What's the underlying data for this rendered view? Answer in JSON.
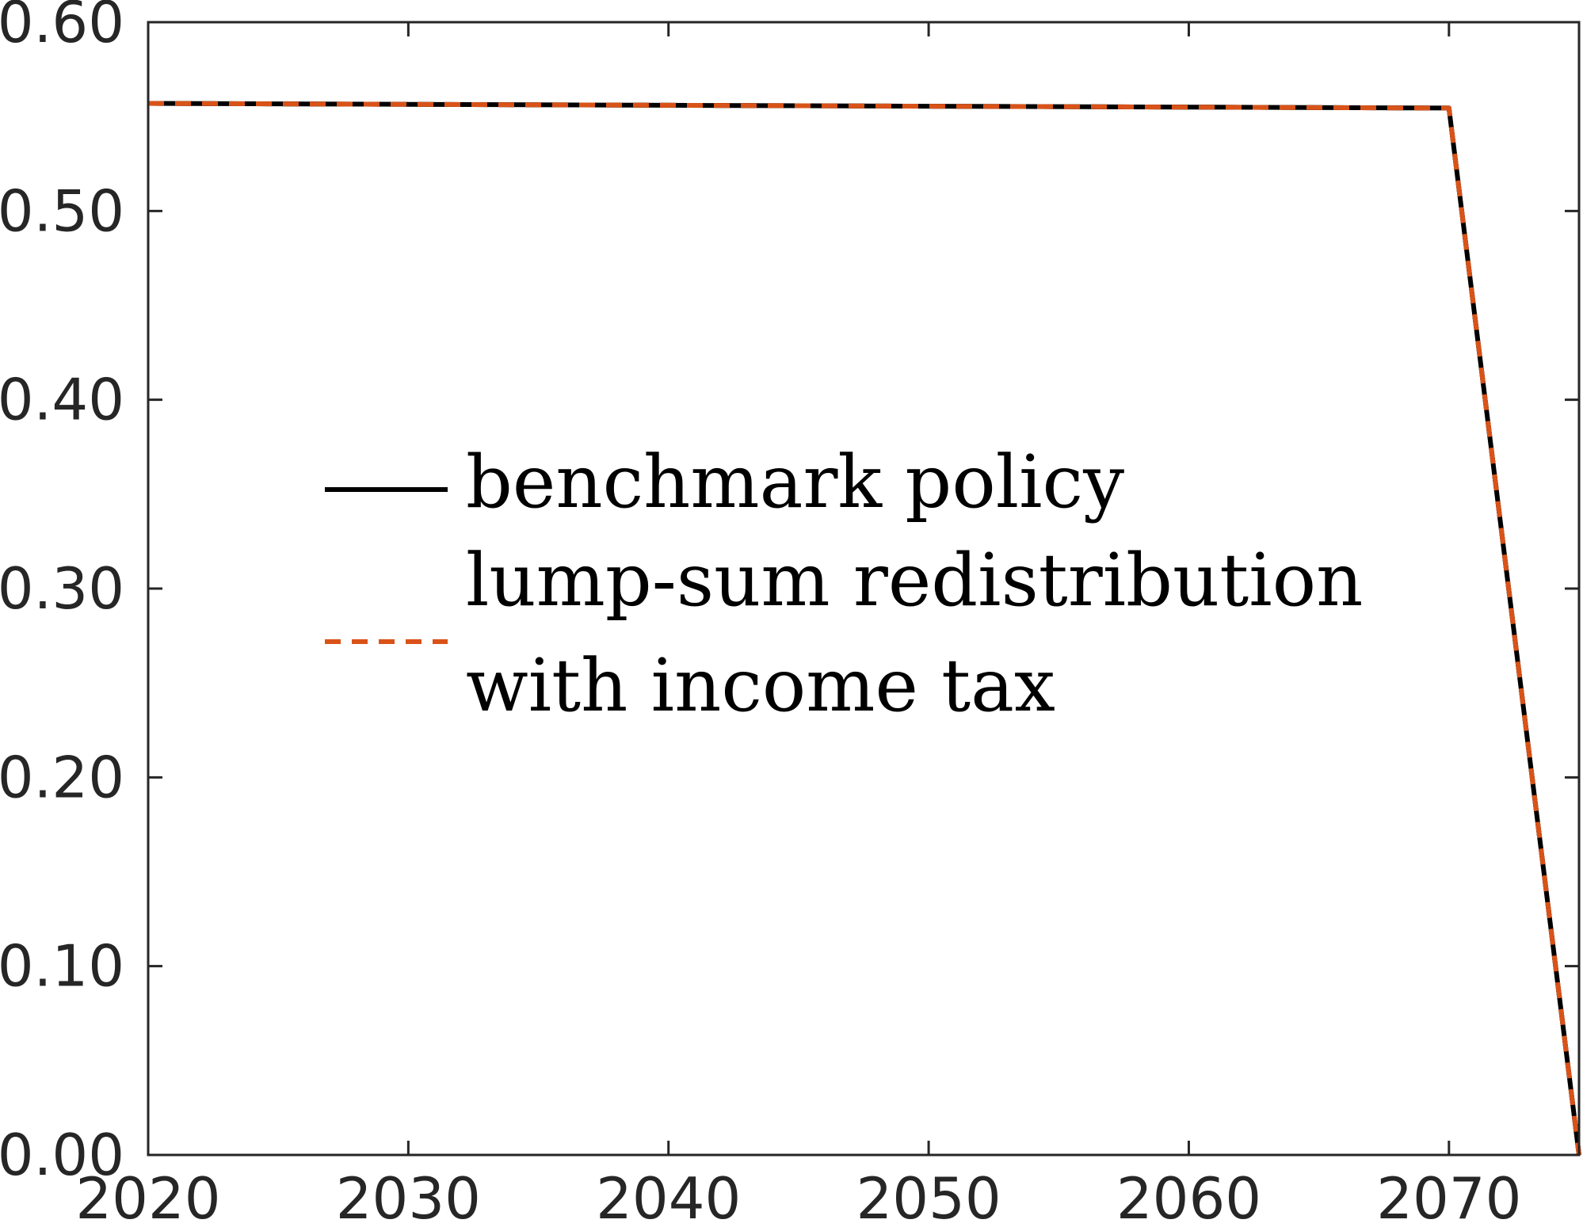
{
  "chart_data": {
    "type": "line",
    "title": "",
    "xlabel": "",
    "ylabel": "",
    "xlim": [
      2020,
      2075
    ],
    "ylim": [
      0,
      0.6
    ],
    "x_ticks": [
      2020,
      2030,
      2040,
      2050,
      2060,
      2070
    ],
    "x_tick_labels": [
      "2020",
      "2030",
      "2040",
      "2050",
      "2060",
      "2070"
    ],
    "y_ticks": [
      0,
      0.1,
      0.2,
      0.3,
      0.4,
      0.5,
      0.6
    ],
    "y_tick_labels": [
      "0.00",
      "0.10",
      "0.20",
      "0.30",
      "0.40",
      "0.50",
      "0.60"
    ],
    "grid": false,
    "box": true,
    "legend_position": "center-left",
    "series": [
      {
        "name": "benchmark policy",
        "color": "#000000",
        "style": "solid",
        "x": [
          2020,
          2030,
          2040,
          2050,
          2060,
          2070,
          2075
        ],
        "y": [
          0.557,
          0.5565,
          0.556,
          0.5555,
          0.555,
          0.5545,
          0.0
        ]
      },
      {
        "name": "lump-sum redistribution",
        "color": "#000000",
        "style": "dashed",
        "x": [
          2020,
          2030,
          2040,
          2050,
          2060,
          2070,
          2075
        ],
        "y": [
          0.557,
          0.5565,
          0.556,
          0.5555,
          0.555,
          0.5545,
          0.0
        ]
      },
      {
        "name": "with income tax",
        "color": "#D95319",
        "style": "dashed",
        "x": [
          2020,
          2030,
          2040,
          2050,
          2060,
          2070,
          2075
        ],
        "y": [
          0.557,
          0.5565,
          0.556,
          0.5555,
          0.555,
          0.5545,
          0.0
        ]
      }
    ]
  }
}
